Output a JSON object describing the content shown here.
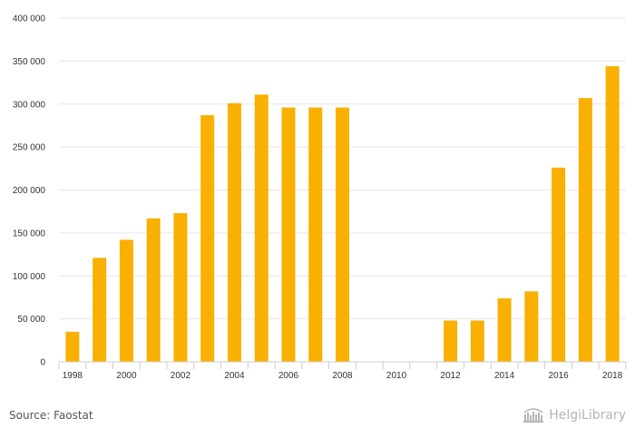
{
  "chart_data": {
    "type": "bar",
    "categories": [
      "1998",
      "1999",
      "2000",
      "2001",
      "2002",
      "2003",
      "2004",
      "2005",
      "2006",
      "2007",
      "2008",
      "2009",
      "2010",
      "2011",
      "2012",
      "2013",
      "2014",
      "2015",
      "2016",
      "2017",
      "2018"
    ],
    "values": [
      35000,
      121000,
      142000,
      167000,
      173000,
      287000,
      301000,
      311000,
      296000,
      296000,
      296000,
      0,
      0,
      0,
      48000,
      48000,
      74000,
      82000,
      226000,
      307000,
      344000
    ],
    "x_tick_labels": [
      "1998",
      "2000",
      "2002",
      "2004",
      "2006",
      "2008",
      "2010",
      "2012",
      "2014",
      "2016",
      "2018"
    ],
    "y_tick_labels": [
      "0",
      "50 000",
      "100 000",
      "150 000",
      "200 000",
      "250 000",
      "300 000",
      "350 000",
      "400 000"
    ],
    "ylim": [
      0,
      400000
    ],
    "grid": true,
    "bar_color": "#f9b000"
  },
  "footer": {
    "source": "Source: Faostat",
    "brand": "HelgiLibrary"
  },
  "colors": {
    "grid": "#e6e6e6",
    "axis": "#cccccc",
    "brand": "#b5b5b5"
  }
}
